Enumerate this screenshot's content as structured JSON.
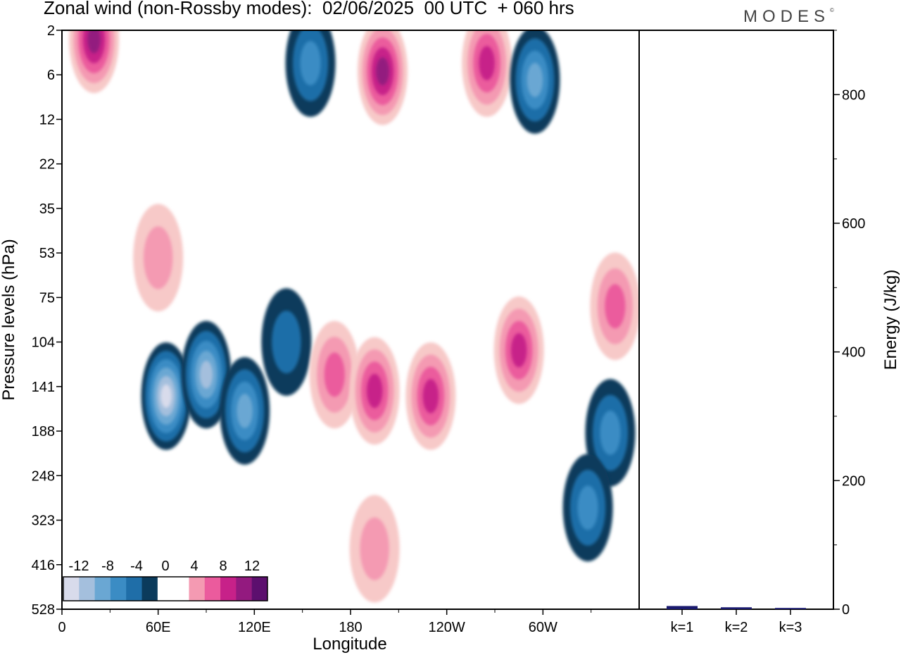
{
  "title": "Zonal wind (non-Rossby modes):  02/06/2025  00 UTC  + 060 hrs",
  "logo": "MODES",
  "logo_mark": "©",
  "colors": {
    "neg": [
      "#0b3b5c",
      "#1f6ea8",
      "#3b8cc4",
      "#6aa7d3",
      "#a4bfdd",
      "#d8dbeb"
    ],
    "pos": [
      "#f7c9c8",
      "#f49ab2",
      "#eb5b9d",
      "#c72189",
      "#931a7f",
      "#5c0f6e"
    ],
    "zero": "#ffffff",
    "bar": "#1a1a6e"
  },
  "colorbar": {
    "labels": [
      "-12",
      "-8",
      "-4",
      "0",
      "4",
      "8",
      "12"
    ]
  },
  "chart_data": [
    {
      "type": "heatmap",
      "title": "Zonal wind (non-Rossby modes):  02/06/2025  00 UTC  + 060 hrs",
      "xlabel": "Longitude",
      "ylabel": "Pressure levels (hPa)",
      "x_ticks": [
        "0",
        "60E",
        "120E",
        "180",
        "120W",
        "60W"
      ],
      "y_ticks": [
        "2",
        "6",
        "12",
        "22",
        "35",
        "53",
        "75",
        "104",
        "141",
        "188",
        "248",
        "323",
        "416",
        "528"
      ],
      "contour_levels": [
        -12,
        -10,
        -8,
        -6,
        -4,
        -2,
        2,
        4,
        6,
        8,
        10,
        12
      ],
      "features": [
        {
          "x": 20,
          "y": 2.5,
          "value": 9
        },
        {
          "x": 200,
          "y": 5.5,
          "value": 8
        },
        {
          "x": 265,
          "y": 4.5,
          "value": 7
        },
        {
          "x": 295,
          "y": 6.5,
          "value": -6
        },
        {
          "x": 155,
          "y": 4.5,
          "value": -4
        },
        {
          "x": 65,
          "y": 150,
          "value": -12
        },
        {
          "x": 90,
          "y": 130,
          "value": -8
        },
        {
          "x": 114,
          "y": 165,
          "value": -7
        },
        {
          "x": 140,
          "y": 104,
          "value": -3
        },
        {
          "x": 170,
          "y": 130,
          "value": 5
        },
        {
          "x": 195,
          "y": 145,
          "value": 7
        },
        {
          "x": 230,
          "y": 150,
          "value": 6
        },
        {
          "x": 285,
          "y": 110,
          "value": 7
        },
        {
          "x": 345,
          "y": 80,
          "value": 5
        },
        {
          "x": 342,
          "y": 190,
          "value": -4
        },
        {
          "x": 328,
          "y": 300,
          "value": -4
        },
        {
          "x": 60,
          "y": 55,
          "value": 3
        },
        {
          "x": 195,
          "y": 380,
          "value": 3
        }
      ]
    },
    {
      "type": "bar",
      "categories": [
        "k=1",
        "k=2",
        "k=3"
      ],
      "values": [
        5,
        3,
        2
      ],
      "ylabel": "Energy (J/kg)",
      "y_ticks": [
        "0",
        "200",
        "400",
        "600",
        "800"
      ],
      "ylim": [
        0,
        900
      ]
    }
  ]
}
